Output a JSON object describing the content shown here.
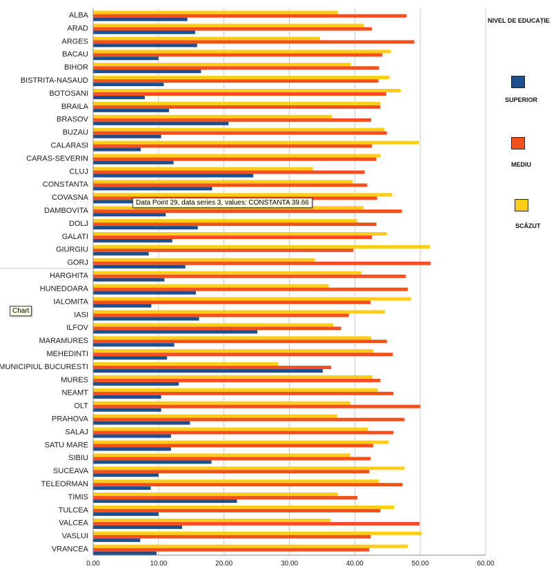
{
  "chart_data": {
    "type": "bar",
    "orientation": "horizontal",
    "title": "",
    "xlabel": "",
    "ylabel": "",
    "xlim": [
      0,
      60
    ],
    "x_ticks": [
      "0.00",
      "10.00",
      "20.00",
      "30.00",
      "40.00",
      "50.00",
      "60.00"
    ],
    "grid": true,
    "legend_position": "right",
    "legend_title": "NIVEL DE EDUCAȚIE",
    "categories": [
      "ALBA",
      "ARAD",
      "ARGES",
      "BACAU",
      "BIHOR",
      "BISTRITA-NASAUD",
      "BOTOSANI",
      "BRAILA",
      "BRASOV",
      "BUZAU",
      "CALARASI",
      "CARAS-SEVERIN",
      "CLUJ",
      "CONSTANTA",
      "COVASNA",
      "DAMBOVITA",
      "DOLJ",
      "GALATI",
      "GIURGIU",
      "GORJ",
      "HARGHITA",
      "HUNEDOARA",
      "IALOMITA",
      "IASI",
      "ILFOV",
      "MARAMURES",
      "MEHEDINTI",
      "MUNICIPIUL BUCURESTI",
      "MURES",
      "NEAMT",
      "OLT",
      "PRAHOVA",
      "SALAJ",
      "SATU MARE",
      "SIBIU",
      "SUCEAVA",
      "TELEORMAN",
      "TIMIS",
      "TULCEA",
      "VALCEA",
      "VASLUI",
      "VRANCEA"
    ],
    "series": [
      {
        "name": "SUPERIOR",
        "color": "#1f4e8c",
        "values": [
          14.4,
          15.6,
          15.9,
          10.0,
          16.5,
          10.8,
          7.9,
          11.6,
          20.7,
          10.4,
          7.3,
          12.3,
          24.5,
          18.2,
          8.6,
          11.1,
          16.0,
          12.1,
          8.5,
          14.1,
          10.9,
          15.7,
          8.9,
          16.2,
          25.1,
          12.4,
          11.3,
          35.1,
          13.1,
          10.4,
          10.4,
          14.8,
          11.9,
          11.9,
          18.1,
          10.0,
          8.8,
          22.0,
          10.0,
          13.6,
          7.2,
          9.7
        ]
      },
      {
        "name": "MEDIU",
        "color": "#f2501e",
        "values": [
          47.9,
          42.6,
          49.1,
          44.2,
          43.7,
          43.6,
          44.8,
          43.9,
          42.5,
          44.9,
          42.6,
          43.3,
          41.5,
          41.9,
          43.4,
          47.2,
          43.3,
          42.6,
          39.8,
          51.6,
          47.8,
          48.1,
          42.4,
          39.1,
          37.9,
          44.9,
          45.8,
          36.4,
          43.9,
          45.9,
          50.0,
          47.6,
          45.9,
          42.8,
          42.4,
          42.2,
          47.3,
          40.4,
          43.9,
          49.9,
          42.4,
          42.2
        ]
      },
      {
        "name": "SCĂZUT",
        "color": "#ffcc1a",
        "values": [
          37.4,
          41.4,
          34.7,
          45.5,
          39.4,
          45.3,
          47.0,
          43.9,
          36.5,
          44.5,
          49.8,
          43.9,
          33.6,
          39.66,
          45.7,
          41.3,
          40.4,
          44.9,
          51.5,
          33.9,
          41.0,
          36.0,
          48.6,
          44.6,
          36.7,
          42.5,
          42.8,
          28.3,
          42.7,
          43.5,
          39.3,
          37.3,
          42.0,
          45.2,
          39.3,
          47.6,
          43.7,
          37.4,
          46.0,
          36.3,
          50.2,
          48.1
        ]
      }
    ]
  },
  "tooltip": "Data Point 29, data series 3, values: CONSTANTA 39.66",
  "chart_tip": "Chart"
}
